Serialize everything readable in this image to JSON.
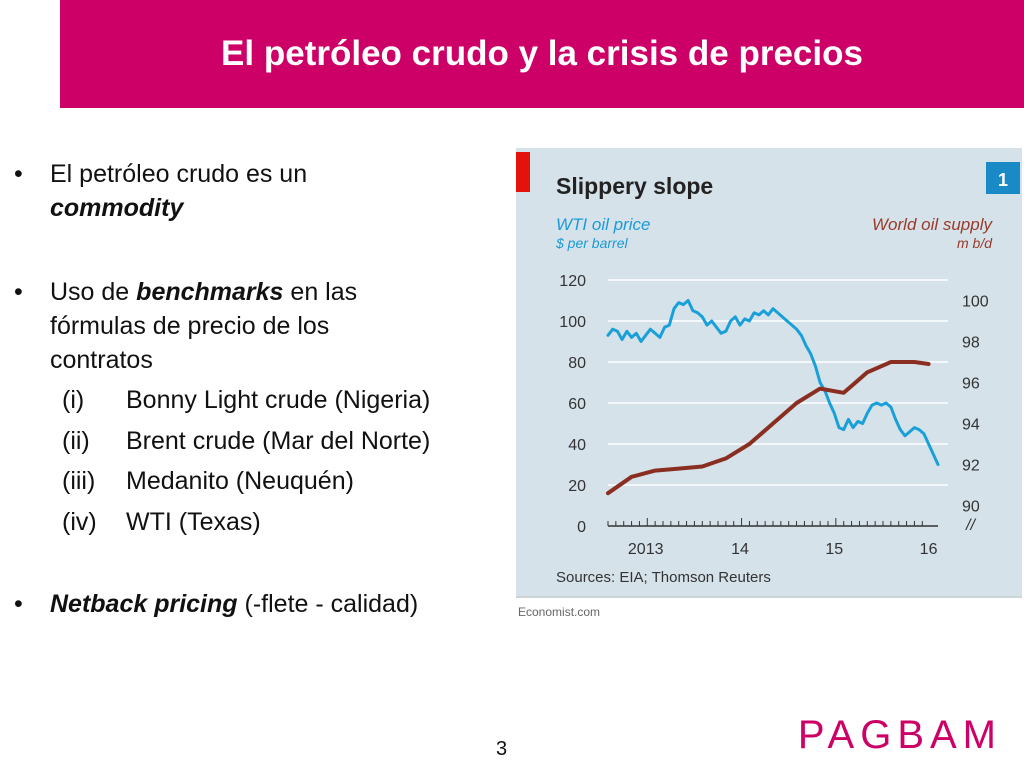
{
  "slide": {
    "title": "El petróleo crudo y la crisis de precios",
    "page_number": "3",
    "brand": "PAGBAM",
    "accent_color": "#cc0066"
  },
  "bullets": {
    "b1_line1": "El petróleo crudo es un",
    "b1_line2": "commodity",
    "b2_prefix": "Uso de ",
    "b2_bold": "benchmarks",
    "b2_suffix": " en las",
    "b2_line2": "fórmulas de precio de los",
    "b2_line3": "contratos",
    "subitems": [
      {
        "num": "(i)",
        "label": "Bonny Light crude (Nigeria)"
      },
      {
        "num": "(ii)",
        "label": "Brent crude (Mar del Norte)"
      },
      {
        "num": "(iii)",
        "label": "Medanito (Neuquén)"
      },
      {
        "num": "(iv)",
        "label": "WTI (Texas)"
      }
    ],
    "b3_bold": "Netback pricing",
    "b3_suffix": " (-flete - calidad)"
  },
  "chart_data": {
    "type": "line",
    "title": "Slippery slope",
    "badge": "1",
    "source": "Sources: EIA; Thomson Reuters",
    "footer": "Economist.com",
    "left_axis": {
      "label": "WTI oil price",
      "unit": "$ per barrel",
      "ticks": [
        0,
        20,
        40,
        60,
        80,
        100,
        120
      ],
      "range": [
        0,
        120
      ]
    },
    "right_axis": {
      "label": "World oil supply",
      "unit": "m b/d",
      "ticks": [
        90,
        92,
        94,
        96,
        98,
        100
      ],
      "range": [
        89,
        101
      ]
    },
    "x_ticks": [
      "2013",
      "14",
      "15",
      "16"
    ],
    "x_range": [
      2012.6,
      2016.1
    ],
    "colors": {
      "wti": "#1aa0d8",
      "supply": "#8a2e22",
      "background": "#d6e2ea",
      "left_text": "#1a9ad6",
      "right_text": "#9a3a2a"
    },
    "series": [
      {
        "name": "WTI oil price",
        "axis": "left",
        "x": [
          2012.6,
          2012.65,
          2012.7,
          2012.75,
          2012.8,
          2012.85,
          2012.9,
          2012.95,
          2013.0,
          2013.05,
          2013.1,
          2013.15,
          2013.2,
          2013.25,
          2013.3,
          2013.35,
          2013.4,
          2013.45,
          2013.5,
          2013.55,
          2013.6,
          2013.65,
          2013.7,
          2013.75,
          2013.8,
          2013.85,
          2013.9,
          2013.95,
          2014.0,
          2014.05,
          2014.1,
          2014.15,
          2014.2,
          2014.25,
          2014.3,
          2014.35,
          2014.4,
          2014.45,
          2014.5,
          2014.55,
          2014.6,
          2014.65,
          2014.7,
          2014.75,
          2014.8,
          2014.85,
          2014.9,
          2014.95,
          2015.0,
          2015.05,
          2015.1,
          2015.15,
          2015.2,
          2015.25,
          2015.3,
          2015.35,
          2015.4,
          2015.45,
          2015.5,
          2015.55,
          2015.6,
          2015.65,
          2015.7,
          2015.75,
          2015.8,
          2015.85,
          2015.9,
          2015.95,
          2016.0,
          2016.05,
          2016.1
        ],
        "values": [
          93,
          96,
          95,
          91,
          95,
          92,
          94,
          90,
          93,
          96,
          94,
          92,
          97,
          98,
          106,
          109,
          108,
          110,
          105,
          104,
          102,
          98,
          100,
          97,
          94,
          95,
          100,
          102,
          98,
          101,
          100,
          104,
          103,
          105,
          103,
          106,
          104,
          102,
          100,
          98,
          96,
          93,
          88,
          84,
          78,
          70,
          66,
          60,
          55,
          48,
          47,
          52,
          48,
          51,
          50,
          55,
          59,
          60,
          59,
          60,
          58,
          52,
          47,
          44,
          46,
          48,
          47,
          45,
          40,
          35,
          30
        ]
      },
      {
        "name": "World oil supply",
        "axis": "right",
        "x": [
          2012.6,
          2012.85,
          2013.1,
          2013.35,
          2013.6,
          2013.85,
          2014.1,
          2014.35,
          2014.6,
          2014.85,
          2015.1,
          2015.35,
          2015.6,
          2015.85,
          2016.0
        ],
        "values": [
          90.6,
          91.4,
          91.7,
          91.8,
          91.9,
          92.3,
          93.0,
          94.0,
          95.0,
          95.7,
          95.5,
          96.5,
          97.0,
          97.0,
          96.9
        ]
      }
    ]
  }
}
